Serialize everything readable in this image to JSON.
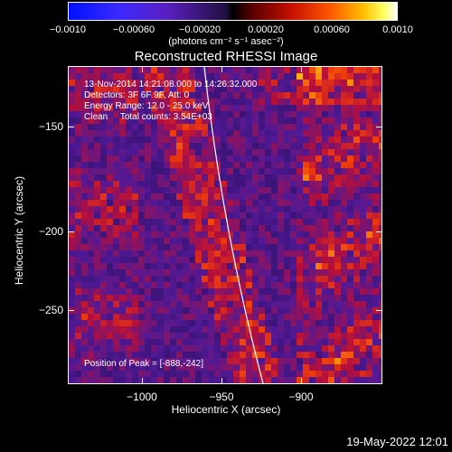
{
  "colorbar": {
    "tick_labels": [
      "−0.0010",
      "−0.00060",
      "−0.00020",
      "0.00020",
      "0.00060",
      "0.0010"
    ],
    "units": "(photons cm⁻² s⁻¹ asec⁻²)"
  },
  "title": "Reconstructed RHESSI Image",
  "info": {
    "time": "13-Nov-2014 14:21:08.000 to 14:26:32.000",
    "detectors": "Detectors: 3F 6F 9F, Att: 0",
    "energy": "Energy Range: 12.0 - 25.0 keV",
    "clean": "Clean     Total counts: 3.54E+03",
    "peak": "Position of Peak = [-888,-242]"
  },
  "axes": {
    "ylabel": "Heliocentric Y (arcsec)",
    "xlabel": "Heliocentric X (arcsec)",
    "yticks": [
      "−150",
      "−200",
      "−250"
    ],
    "xticks": [
      "−1000",
      "−950",
      "−900"
    ]
  },
  "timestamp": "19-May-2022 12:01",
  "colors": {
    "background": "#000000",
    "limb_line": "#ffffff"
  }
}
